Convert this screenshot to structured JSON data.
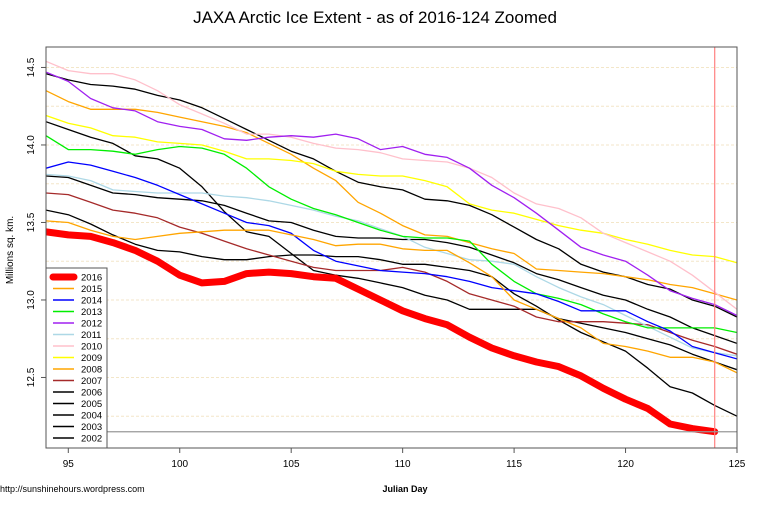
{
  "chart_data": {
    "type": "line",
    "title": "JAXA Arctic Ice Extent - as of 2016-124 Zoomed",
    "xlabel": "Julian Day",
    "ylabel": "Millions sq. km.",
    "xlim": [
      94,
      125
    ],
    "ylim": [
      12.045,
      14.632
    ],
    "x_ticks": [
      95,
      100,
      105,
      110,
      115,
      120,
      125
    ],
    "y_ticks": [
      12.5,
      13.0,
      13.5,
      14.0,
      14.5
    ],
    "y_tick_labels": [
      "12.5",
      "13.0",
      "13.5",
      "14.0",
      "14.5"
    ],
    "grid": "horizontal dashed every 0.25",
    "grid_values": [
      12.25,
      12.5,
      12.75,
      13.0,
      13.25,
      13.5,
      13.75,
      14.0,
      14.25,
      14.5
    ],
    "reference_vline_x": 124,
    "reference_hline_y": 12.15,
    "legend_position": "bottom-left",
    "x_start": 94,
    "series": [
      {
        "name": "2002",
        "color": "#000000",
        "width": 1.3,
        "values": []
      },
      {
        "name": "2003",
        "color": "#000000",
        "width": 1.3,
        "values": [
          13.58,
          13.55,
          13.49,
          13.42,
          13.36,
          13.32,
          13.31,
          13.28,
          13.26,
          13.26,
          13.28,
          13.29,
          13.29,
          13.28,
          13.28,
          13.26,
          13.23,
          13.23,
          13.21,
          13.19,
          13.15,
          13.04,
          12.96,
          12.87,
          12.79,
          12.73,
          12.67,
          12.56,
          12.44,
          12.4,
          12.32,
          12.25
        ]
      },
      {
        "name": "2004",
        "color": "#000000",
        "width": 1.3,
        "values": [
          13.8,
          13.79,
          13.74,
          13.69,
          13.68,
          13.66,
          13.65,
          13.64,
          13.61,
          13.56,
          13.51,
          13.5,
          13.45,
          13.41,
          13.4,
          13.4,
          13.39,
          13.39,
          13.37,
          13.34,
          13.29,
          13.24,
          13.17,
          13.13,
          13.08,
          13.03,
          13.0,
          12.94,
          12.89,
          12.82,
          12.77,
          12.72
        ]
      },
      {
        "name": "2005",
        "color": "#000000",
        "width": 1.3,
        "values": [
          14.15,
          14.1,
          14.05,
          14.01,
          13.93,
          13.91,
          13.85,
          13.73,
          13.57,
          13.44,
          13.41,
          13.3,
          13.19,
          13.16,
          13.14,
          13.11,
          13.08,
          13.03,
          13.0,
          12.94,
          12.94,
          12.94,
          12.94,
          12.88,
          12.85,
          12.82,
          12.79,
          12.75,
          12.71,
          12.65,
          12.6,
          12.55
        ]
      },
      {
        "name": "2006",
        "color": "#000000",
        "width": 1.3,
        "values": [
          14.46,
          14.42,
          14.39,
          14.38,
          14.36,
          14.32,
          14.29,
          14.24,
          14.17,
          14.1,
          14.03,
          13.96,
          13.91,
          13.83,
          13.76,
          13.73,
          13.71,
          13.65,
          13.64,
          13.61,
          13.55,
          13.47,
          13.39,
          13.33,
          13.23,
          13.18,
          13.15,
          13.1,
          13.07,
          13.0,
          12.96,
          12.89
        ]
      },
      {
        "name": "2007",
        "color": "#a52a2a",
        "width": 1.3,
        "values": [
          13.69,
          13.68,
          13.63,
          13.58,
          13.56,
          13.53,
          13.47,
          13.43,
          13.38,
          13.33,
          13.29,
          13.25,
          13.21,
          13.19,
          13.19,
          13.19,
          13.21,
          13.18,
          13.12,
          13.04,
          13.0,
          12.96,
          12.89,
          12.86,
          12.86,
          12.86,
          12.85,
          12.84,
          12.79,
          12.74,
          12.7,
          12.65
        ]
      },
      {
        "name": "2008",
        "color": "#ffa500",
        "width": 1.3,
        "values": [
          14.35,
          14.28,
          14.23,
          14.23,
          14.23,
          14.21,
          14.18,
          14.15,
          14.12,
          14.08,
          14.01,
          13.94,
          13.85,
          13.77,
          13.63,
          13.56,
          13.48,
          13.42,
          13.41,
          13.37,
          13.33,
          13.3,
          13.2,
          13.19,
          13.18,
          13.17,
          13.15,
          13.13,
          13.1,
          13.08,
          13.04,
          13.0
        ]
      },
      {
        "name": "2009",
        "color": "#ffff00",
        "width": 1.3,
        "values": [
          14.19,
          14.14,
          14.11,
          14.06,
          14.05,
          14.02,
          14.01,
          14.0,
          13.96,
          13.91,
          13.91,
          13.9,
          13.88,
          13.83,
          13.81,
          13.8,
          13.8,
          13.77,
          13.73,
          13.62,
          13.58,
          13.56,
          13.52,
          13.48,
          13.45,
          13.43,
          13.39,
          13.36,
          13.32,
          13.29,
          13.28,
          13.24
        ]
      },
      {
        "name": "2010",
        "color": "#ffc0cb",
        "width": 1.3,
        "values": [
          14.54,
          14.48,
          14.46,
          14.46,
          14.42,
          14.35,
          14.26,
          14.2,
          14.14,
          14.07,
          14.07,
          14.05,
          14.01,
          13.98,
          13.97,
          13.95,
          13.91,
          13.9,
          13.89,
          13.85,
          13.79,
          13.69,
          13.62,
          13.59,
          13.53,
          13.43,
          13.37,
          13.31,
          13.25,
          13.16,
          13.05,
          12.94
        ]
      },
      {
        "name": "2011",
        "color": "#add8e6",
        "width": 1.3,
        "values": [
          13.81,
          13.8,
          13.77,
          13.71,
          13.7,
          13.69,
          13.69,
          13.69,
          13.67,
          13.66,
          13.64,
          13.61,
          13.58,
          13.54,
          13.51,
          13.46,
          13.41,
          13.34,
          13.3,
          13.26,
          13.25,
          13.23,
          13.15,
          13.08,
          13.02,
          12.97,
          12.9,
          12.83,
          12.76,
          12.69,
          12.66,
          12.64
        ]
      },
      {
        "name": "2012",
        "color": "#a020f0",
        "width": 1.3,
        "values": [
          14.47,
          14.41,
          14.3,
          14.24,
          14.22,
          14.15,
          14.12,
          14.1,
          14.04,
          14.03,
          14.05,
          14.06,
          14.05,
          14.07,
          14.04,
          13.97,
          13.99,
          13.94,
          13.92,
          13.85,
          13.74,
          13.66,
          13.56,
          13.45,
          13.34,
          13.29,
          13.25,
          13.16,
          13.06,
          13.01,
          12.97,
          12.9
        ]
      },
      {
        "name": "2013",
        "color": "#00ee00",
        "width": 1.3,
        "values": [
          14.06,
          13.97,
          13.97,
          13.96,
          13.94,
          13.97,
          13.99,
          13.98,
          13.94,
          13.85,
          13.73,
          13.65,
          13.59,
          13.55,
          13.5,
          13.45,
          13.41,
          13.4,
          13.4,
          13.38,
          13.23,
          13.12,
          13.04,
          13.01,
          12.97,
          12.91,
          12.86,
          12.82,
          12.82,
          12.82,
          12.82,
          12.79
        ]
      },
      {
        "name": "2014",
        "color": "#0000ff",
        "width": 1.3,
        "values": [
          13.85,
          13.89,
          13.87,
          13.83,
          13.79,
          13.74,
          13.68,
          13.62,
          13.56,
          13.5,
          13.48,
          13.43,
          13.32,
          13.25,
          13.22,
          13.19,
          13.18,
          13.17,
          13.15,
          13.12,
          13.08,
          13.06,
          13.04,
          12.99,
          12.93,
          12.93,
          12.93,
          12.86,
          12.8,
          12.7,
          12.66,
          12.62
        ]
      },
      {
        "name": "2015",
        "color": "#ffa500",
        "width": 1.3,
        "values": [
          13.51,
          13.5,
          13.45,
          13.41,
          13.39,
          13.41,
          13.43,
          13.44,
          13.45,
          13.45,
          13.45,
          13.42,
          13.39,
          13.35,
          13.36,
          13.36,
          13.33,
          13.32,
          13.32,
          13.24,
          13.15,
          13.0,
          12.94,
          12.88,
          12.82,
          12.72,
          12.7,
          12.67,
          12.63,
          12.63,
          12.6,
          12.53
        ]
      },
      {
        "name": "2016",
        "color": "#ff0000",
        "width": 7,
        "values": [
          13.44,
          13.42,
          13.41,
          13.37,
          13.32,
          13.25,
          13.16,
          13.11,
          13.12,
          13.17,
          13.18,
          13.17,
          13.15,
          13.14,
          13.07,
          13.0,
          12.93,
          12.88,
          12.84,
          12.76,
          12.69,
          12.64,
          12.6,
          12.57,
          12.51,
          12.43,
          12.36,
          12.3,
          12.2,
          12.17,
          12.15
        ]
      }
    ],
    "legend_order": [
      "2016",
      "2015",
      "2014",
      "2013",
      "2012",
      "2011",
      "2010",
      "2009",
      "2008",
      "2007",
      "2006",
      "2005",
      "2004",
      "2003",
      "2002"
    ]
  },
  "footer": {
    "source": "http://sunshinehours.wordpress.com"
  }
}
